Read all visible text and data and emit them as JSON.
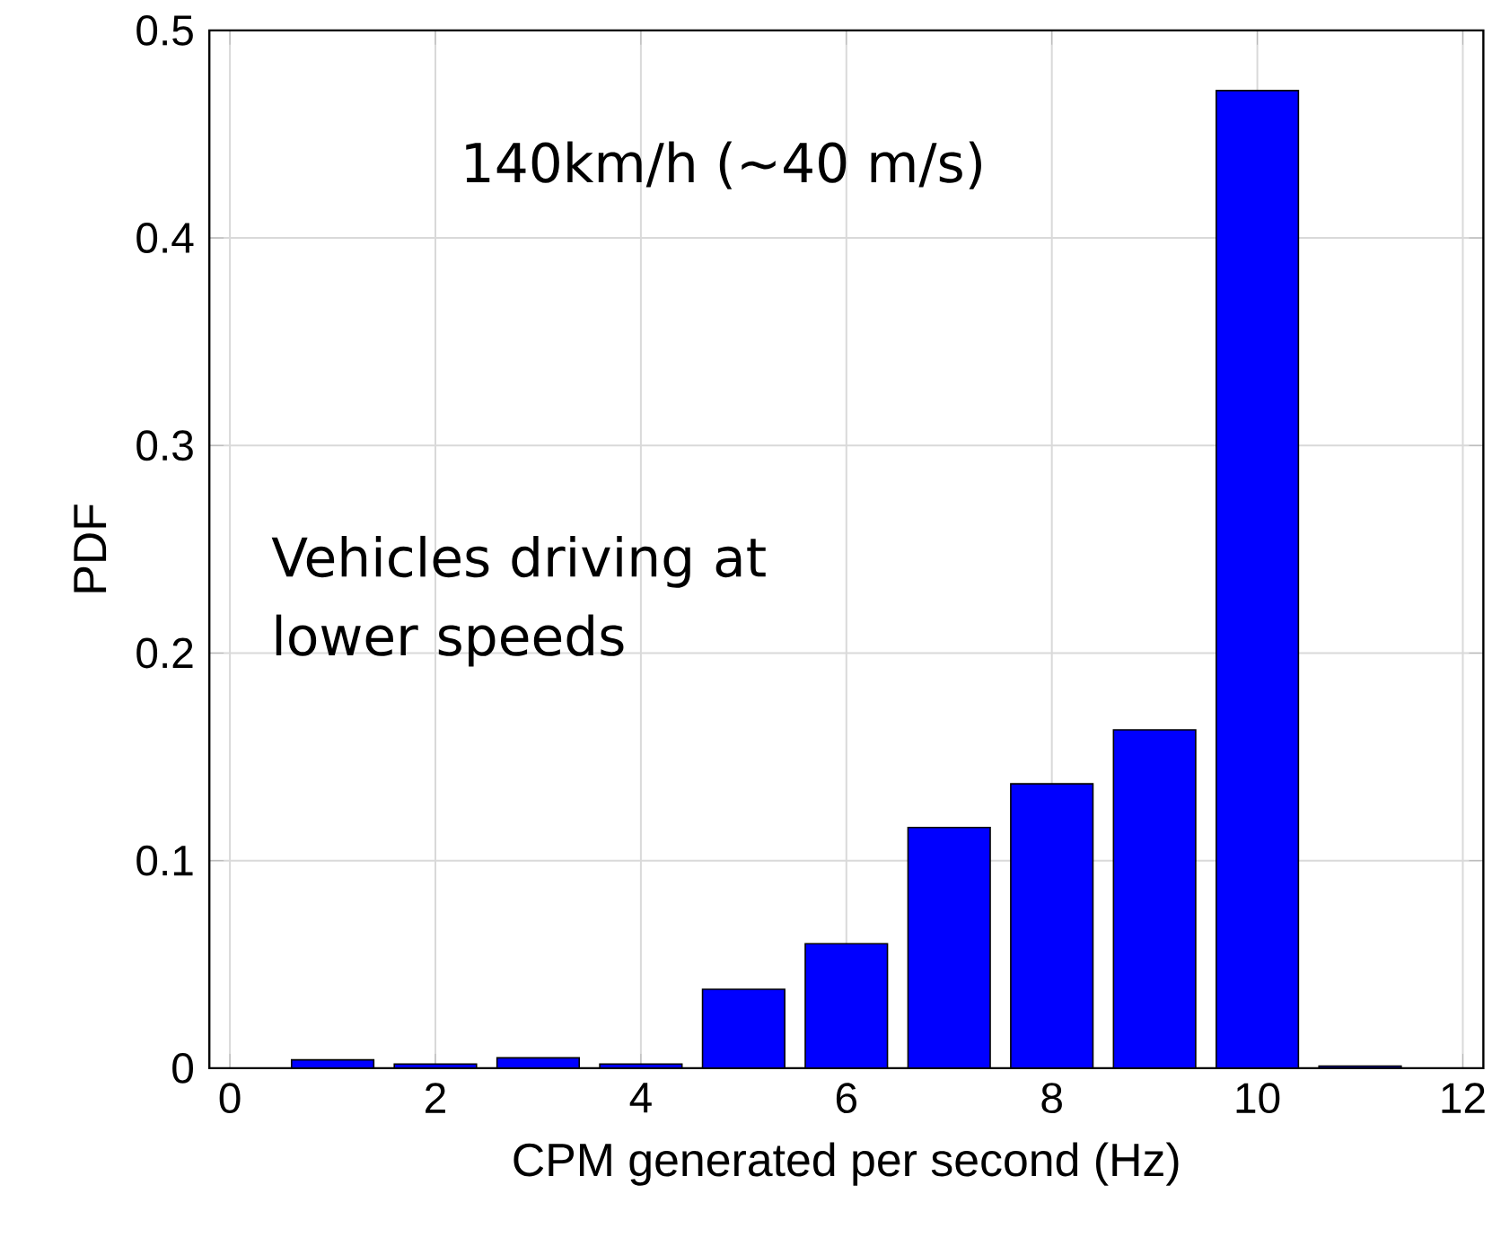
{
  "chart_data": {
    "type": "bar",
    "xlabel": "CPM generated per second (Hz)",
    "ylabel": "PDF",
    "x": [
      1,
      2,
      3,
      4,
      5,
      6,
      7,
      8,
      9,
      10,
      11
    ],
    "values": [
      0.004,
      0.002,
      0.005,
      0.002,
      0.038,
      0.06,
      0.116,
      0.137,
      0.163,
      0.471,
      0.001
    ],
    "color": "#0000ff",
    "xlim": [
      -0.2,
      12.2
    ],
    "ylim": [
      0,
      0.5
    ],
    "xticks": [
      0,
      2,
      4,
      6,
      8,
      10,
      12
    ],
    "yticks": [
      0,
      0.1,
      0.2,
      0.3,
      0.4,
      0.5
    ],
    "grid": true,
    "annotations": [
      "140km/h (~40 m/s)",
      "Vehicles driving at lower speeds"
    ]
  }
}
